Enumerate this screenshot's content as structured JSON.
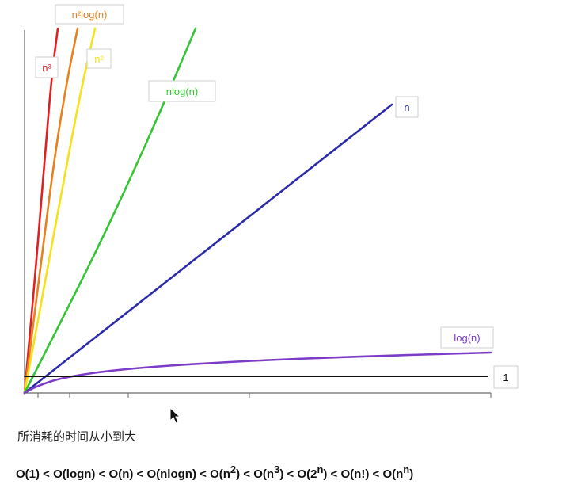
{
  "chart_data": {
    "type": "line",
    "title": "",
    "xlabel": "",
    "ylabel": "",
    "grid": false,
    "series": [
      {
        "name": "n³",
        "color": "#e02020",
        "function": "n^3"
      },
      {
        "name": "n²log(n)",
        "color": "#e8801e",
        "function": "n^2*log(n)"
      },
      {
        "name": "n²",
        "color": "#f5e11a",
        "function": "n^2"
      },
      {
        "name": "nlog(n)",
        "color": "#33c533",
        "function": "n*log(n)"
      },
      {
        "name": "n",
        "color": "#2b2ba8",
        "function": "n"
      },
      {
        "name": "log(n)",
        "color": "#7d3cc8",
        "function": "log(n)"
      },
      {
        "name": "1",
        "color": "#111111",
        "function": "1"
      }
    ]
  },
  "caption": "所消耗的时间从小到大",
  "order": [
    {
      "base": "O(1)",
      "sup": ""
    },
    {
      "base": "O(logn)",
      "sup": ""
    },
    {
      "base": "O(n)",
      "sup": ""
    },
    {
      "base": "O(nlogn)",
      "sup": ""
    },
    {
      "base": "O(n",
      "sup": "2",
      "close": ")"
    },
    {
      "base": "O(n",
      "sup": "3",
      "close": ")"
    },
    {
      "base": "O(2",
      "sup": "n",
      "close": ")"
    },
    {
      "base": "O(n!)",
      "sup": ""
    },
    {
      "base": "O(n",
      "sup": "n",
      "close": ")"
    }
  ],
  "separator": " < "
}
